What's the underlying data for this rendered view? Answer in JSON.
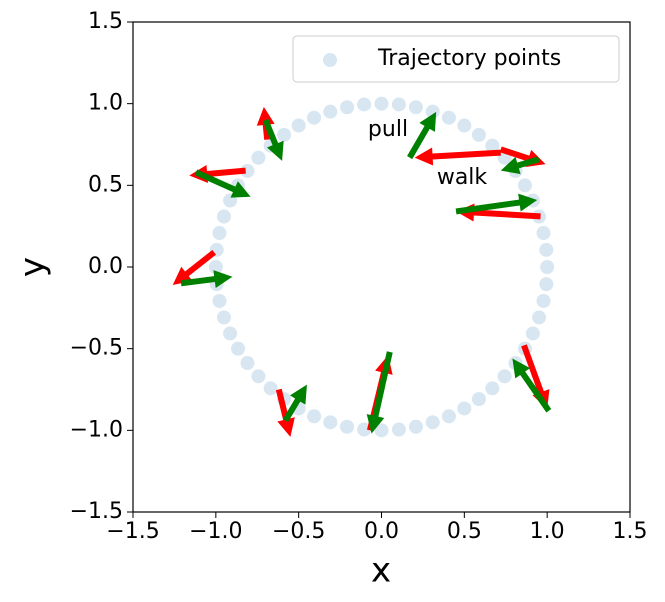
{
  "chart_data": {
    "type": "quiver",
    "xlabel": "x",
    "ylabel": "y",
    "xlim": [
      -1.5,
      1.5
    ],
    "ylim": [
      -1.5,
      1.5
    ],
    "xticks": [
      {
        "value": -1.5,
        "label": "−1.5"
      },
      {
        "value": -1.0,
        "label": "−1.0"
      },
      {
        "value": -0.5,
        "label": "−0.5"
      },
      {
        "value": 0,
        "label": "0.0"
      },
      0.5,
      {
        "value": 1,
        "label": "1.0"
      },
      1.5
    ],
    "yticks": [
      {
        "value": -1.5,
        "label": "−1.5"
      },
      {
        "value": -1.0,
        "label": "−1.0"
      },
      {
        "value": -0.5,
        "label": "−0.5"
      },
      {
        "value": 0,
        "label": "0.0"
      },
      0.5,
      {
        "value": 1,
        "label": "1.0"
      },
      1.5
    ],
    "legend": "upper right",
    "points": {
      "name": "Trajectory points",
      "color": "#1f77b4",
      "x": [
        1,
        0.995,
        0.978,
        0.951,
        0.914,
        0.866,
        0.809,
        0.743,
        0.669,
        0.588,
        0.5,
        0.407,
        0.309,
        0.208,
        0.105,
        0,
        -0.105,
        -0.208,
        -0.309,
        -0.407,
        -0.5,
        -0.588,
        -0.669,
        -0.743,
        -0.809,
        -0.866,
        -0.914,
        -0.951,
        -0.978,
        -0.995,
        -1,
        -0.995,
        -0.978,
        -0.951,
        -0.914,
        -0.866,
        -0.809,
        -0.743,
        -0.669,
        -0.588,
        -0.5,
        -0.407,
        -0.309,
        -0.208,
        -0.105,
        0,
        0.105,
        0.208,
        0.309,
        0.407,
        0.5,
        0.588,
        0.669,
        0.743,
        0.809,
        0.866,
        0.914,
        0.951,
        0.978,
        0.995
      ],
      "y": [
        0,
        0.105,
        0.208,
        0.309,
        0.407,
        0.5,
        0.588,
        0.669,
        0.743,
        0.809,
        0.866,
        0.914,
        0.951,
        0.978,
        0.995,
        1,
        0.995,
        0.978,
        0.951,
        0.914,
        0.866,
        0.809,
        0.743,
        0.669,
        0.588,
        0.5,
        0.407,
        0.309,
        0.208,
        0.105,
        0,
        -0.105,
        -0.208,
        -0.309,
        -0.407,
        -0.5,
        -0.588,
        -0.669,
        -0.743,
        -0.809,
        -0.866,
        -0.914,
        -0.951,
        -0.978,
        -0.995,
        -1,
        -0.995,
        -0.978,
        -0.951,
        -0.914,
        -0.866,
        -0.809,
        -0.743,
        -0.669,
        -0.588,
        -0.5,
        -0.407,
        -0.309,
        -0.208,
        -0.105
      ]
    },
    "series": [
      {
        "name": "walk",
        "color": "#ff0000",
        "x": [
          -0.69,
          -0.82,
          -1.01,
          -0.62,
          -0.07,
          0.86,
          0.96,
          0.72,
          0.72
        ],
        "y": [
          0.78,
          0.59,
          0.09,
          -0.75,
          -1.0,
          -0.48,
          0.31,
          0.7,
          0.72
        ],
        "u": [
          -0.02,
          -0.34,
          -0.25,
          0.07,
          0.11,
          0.14,
          -0.51,
          -0.52,
          0.27
        ],
        "v": [
          0.2,
          -0.03,
          -0.2,
          -0.29,
          0.46,
          -0.39,
          0.03,
          -0.03,
          -0.09
        ]
      },
      {
        "name": "pull",
        "color": "#008000",
        "x": [
          -0.7,
          -1.12,
          -1.21,
          -0.58,
          0.05,
          1.01,
          0.45,
          0.17,
          0.95
        ],
        "y": [
          0.9,
          0.58,
          -0.1,
          -0.94,
          -0.52,
          -0.88,
          0.34,
          0.67,
          0.66
        ],
        "u": [
          0.1,
          0.33,
          0.31,
          0.13,
          -0.11,
          -0.22,
          0.49,
          0.16,
          -0.23
        ],
        "v": [
          -0.25,
          -0.15,
          0.04,
          0.22,
          -0.5,
          0.32,
          0.07,
          0.28,
          -0.07
        ]
      }
    ]
  }
}
